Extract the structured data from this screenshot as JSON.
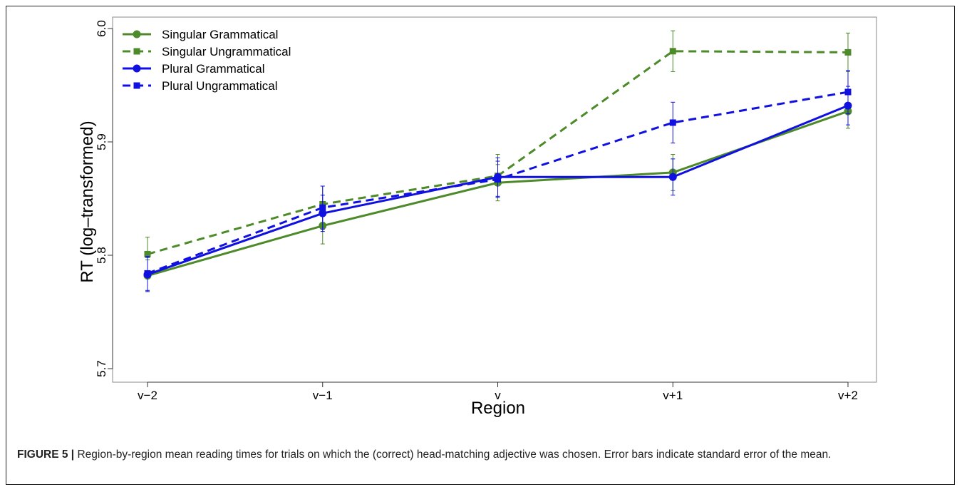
{
  "chart_data": {
    "type": "line",
    "xlabel": "Region",
    "ylabel": "RT (log–transformed)",
    "categories": [
      "v−2",
      "v−1",
      "v",
      "v+1",
      "v+2"
    ],
    "ylim": [
      5.7,
      6.0
    ],
    "yticks": [
      "5.7",
      "5.8",
      "5.9",
      "6.0"
    ],
    "legend_position": "top-left",
    "series": [
      {
        "name": "Singular Grammatical",
        "color": "#4d8a2a",
        "dash": false,
        "marker": "circle",
        "values": [
          5.782,
          5.826,
          5.864,
          5.873,
          5.927
        ],
        "se": [
          0.014,
          0.016,
          0.016,
          0.016,
          0.015
        ]
      },
      {
        "name": "Singular Ungrammatical",
        "color": "#4d8a2a",
        "dash": true,
        "marker": "square",
        "values": [
          5.801,
          5.845,
          5.87,
          5.98,
          5.979
        ],
        "se": [
          0.015,
          0.016,
          0.019,
          0.018,
          0.017
        ]
      },
      {
        "name": "Plural Grammatical",
        "color": "#1010e0",
        "dash": false,
        "marker": "circle",
        "values": [
          5.783,
          5.837,
          5.869,
          5.869,
          5.932
        ],
        "se": [
          0.015,
          0.016,
          0.017,
          0.016,
          0.017
        ]
      },
      {
        "name": "Plural Ungrammatical",
        "color": "#1010e0",
        "dash": true,
        "marker": "square",
        "values": [
          5.784,
          5.842,
          5.867,
          5.917,
          5.944
        ],
        "se": [
          0.015,
          0.019,
          0.016,
          0.018,
          0.019
        ]
      }
    ]
  },
  "caption": {
    "label": "FIGURE 5 |",
    "text": " Region-by-region mean reading times for trials on which the (correct) head-matching adjective was chosen. Error bars indicate standard error of the mean."
  }
}
